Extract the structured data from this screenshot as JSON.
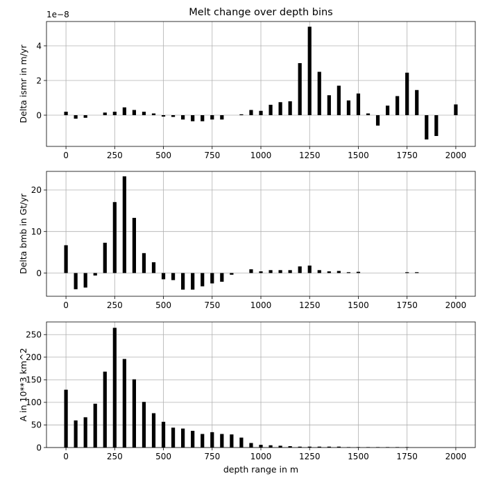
{
  "figure": {
    "title": "Melt change over depth bins"
  },
  "chart_data": [
    {
      "type": "bar",
      "title": "Melt change over depth bins",
      "ylabel": "Delta ismr in m/yr",
      "xlabel": "",
      "offset_text": "1e−8",
      "xlim": [
        -100,
        2100
      ],
      "ylim": [
        -1.8,
        5.4
      ],
      "xticks": [
        0,
        250,
        500,
        750,
        1000,
        1250,
        1500,
        1750,
        2000
      ],
      "yticks": [
        0,
        2,
        4
      ],
      "grid": true,
      "bar_color": "#000000",
      "x": [
        0,
        50,
        100,
        150,
        200,
        250,
        300,
        350,
        400,
        450,
        500,
        550,
        600,
        650,
        700,
        750,
        800,
        850,
        900,
        950,
        1000,
        1050,
        1100,
        1150,
        1200,
        1250,
        1300,
        1350,
        1400,
        1450,
        1500,
        1550,
        1600,
        1650,
        1700,
        1750,
        1800,
        1850,
        1900,
        1950,
        2000
      ],
      "values": [
        0.2,
        -0.2,
        -0.15,
        0,
        0.15,
        0.2,
        0.45,
        0.3,
        0.2,
        0.1,
        -0.08,
        -0.1,
        -0.25,
        -0.35,
        -0.35,
        -0.25,
        -0.25,
        0,
        0.05,
        0.3,
        0.25,
        0.6,
        0.75,
        0.8,
        3.0,
        5.1,
        2.5,
        1.15,
        1.7,
        0.85,
        1.25,
        0.1,
        -0.6,
        0.55,
        1.1,
        2.45,
        1.45,
        -1.4,
        -1.2,
        0,
        0.62
      ]
    },
    {
      "type": "bar",
      "title": "",
      "ylabel": "Delta bmb in Gt/yr",
      "xlabel": "",
      "xlim": [
        -100,
        2100
      ],
      "ylim": [
        -5.6,
        24.5
      ],
      "xticks": [
        0,
        250,
        500,
        750,
        1000,
        1250,
        1500,
        1750,
        2000
      ],
      "yticks": [
        0,
        10,
        20
      ],
      "grid": true,
      "bar_color": "#000000",
      "x": [
        0,
        50,
        100,
        150,
        200,
        250,
        300,
        350,
        400,
        450,
        500,
        550,
        600,
        650,
        700,
        750,
        800,
        850,
        900,
        950,
        1000,
        1050,
        1100,
        1150,
        1200,
        1250,
        1300,
        1350,
        1400,
        1450,
        1500,
        1550,
        1600,
        1650,
        1700,
        1750,
        1800,
        1850,
        1900,
        1950,
        2000
      ],
      "values": [
        6.7,
        -3.9,
        -3.5,
        -0.6,
        7.3,
        17.1,
        23.3,
        13.3,
        4.8,
        2.6,
        -1.5,
        -1.7,
        -4.0,
        -4.0,
        -3.2,
        -2.5,
        -2.1,
        -0.4,
        0,
        0.9,
        0.4,
        0.7,
        0.7,
        0.7,
        1.6,
        1.8,
        0.7,
        0.4,
        0.5,
        0.2,
        0.3,
        0,
        0,
        0,
        0,
        0.2,
        0.2,
        0,
        0,
        0,
        0
      ]
    },
    {
      "type": "bar",
      "title": "",
      "ylabel": "A in 10**3 km^2",
      "xlabel": "depth range in m",
      "xlim": [
        -100,
        2100
      ],
      "ylim": [
        0,
        278
      ],
      "xticks": [
        0,
        250,
        500,
        750,
        1000,
        1250,
        1500,
        1750,
        2000
      ],
      "yticks": [
        0,
        50,
        100,
        150,
        200,
        250
      ],
      "grid": true,
      "bar_color": "#000000",
      "x": [
        0,
        50,
        100,
        150,
        200,
        250,
        300,
        350,
        400,
        450,
        500,
        550,
        600,
        650,
        700,
        750,
        800,
        850,
        900,
        950,
        1000,
        1050,
        1100,
        1150,
        1200,
        1250,
        1300,
        1350,
        1400,
        1450,
        1500,
        1550,
        1600,
        1650,
        1700,
        1750,
        1800,
        1850,
        1900,
        1950,
        2000
      ],
      "values": [
        128,
        60,
        67,
        97,
        168,
        265,
        196,
        151,
        101,
        76,
        57,
        44,
        42,
        37,
        30,
        34,
        30,
        29,
        22,
        10,
        6,
        5,
        4,
        3,
        2,
        2,
        2,
        2,
        2,
        1,
        1,
        1,
        1,
        1,
        1,
        1,
        0,
        0,
        0,
        0,
        0
      ]
    }
  ]
}
